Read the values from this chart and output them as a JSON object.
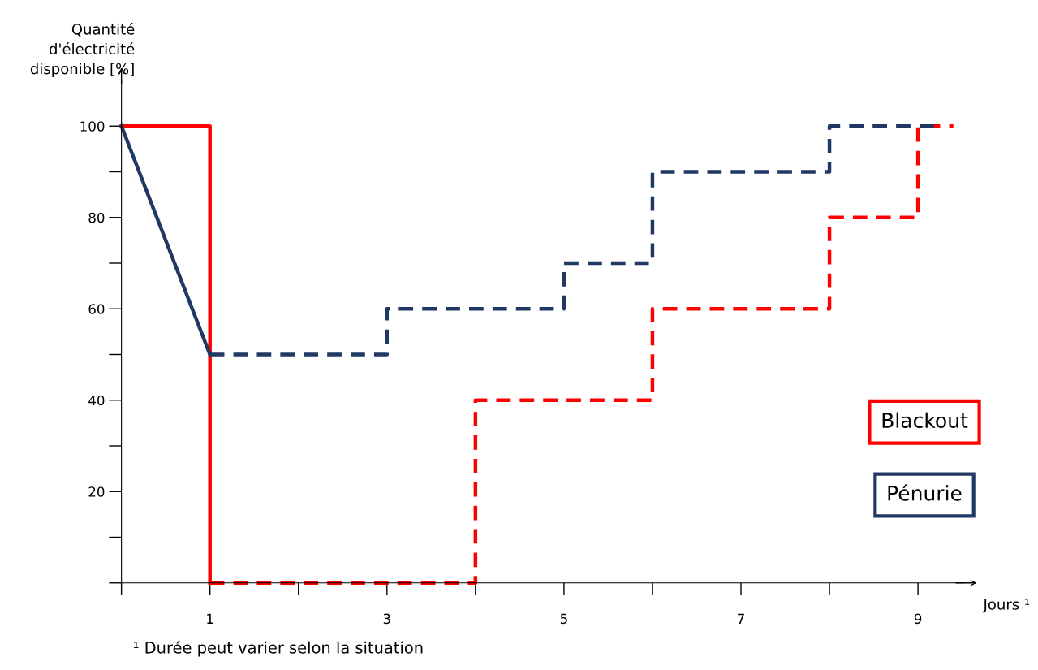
{
  "chart_data": {
    "type": "line",
    "ylabel": "Quantité\nd'électricité\ndisponible [%]",
    "xlabel": "Jours ¹",
    "annotations": [
      "¹ Durée peut varier selon la situation"
    ],
    "xlim": [
      0,
      9.5
    ],
    "ylim": [
      0,
      110
    ],
    "xticks": [
      {
        "value": 0,
        "label": null
      },
      "1",
      {
        "value": 2,
        "label": null
      },
      3,
      {
        "value": 4,
        "label": null
      },
      5,
      {
        "value": 6,
        "label": null
      },
      7,
      {
        "value": 8,
        "label": null
      },
      9
    ],
    "yticks": [
      {
        "value": 0,
        "label": null
      },
      {
        "value": 10,
        "label": null
      },
      20,
      {
        "value": 30,
        "label": null
      },
      40,
      {
        "value": 50,
        "label": null
      },
      60,
      {
        "value": 70,
        "label": null
      },
      80,
      {
        "value": 90,
        "label": null
      },
      100
    ],
    "grid": false,
    "legend": "right",
    "series": [
      {
        "name": "Blackout",
        "color": "#ff0000",
        "line_style": "solid",
        "x": [
          0,
          1,
          1
        ],
        "values": [
          100,
          100,
          0
        ]
      },
      {
        "color": "#ff0000",
        "line_style": "dashed",
        "x": [
          1,
          4,
          4,
          6,
          6,
          8,
          8,
          9,
          9,
          9.4
        ],
        "values": [
          0,
          0,
          40,
          40,
          60,
          60,
          80,
          80,
          100,
          100
        ]
      },
      {
        "name": "Pénurie",
        "color": "#1f3864",
        "line_style": "solid",
        "x": [
          0,
          1
        ],
        "values": [
          100,
          50
        ]
      },
      {
        "color": "#1f3864",
        "line_style": "dashed",
        "x": [
          1,
          3,
          3,
          5,
          5,
          6,
          6,
          8,
          8,
          9.2
        ],
        "values": [
          50,
          50,
          60,
          60,
          70,
          70,
          90,
          90,
          100,
          100
        ]
      }
    ]
  }
}
